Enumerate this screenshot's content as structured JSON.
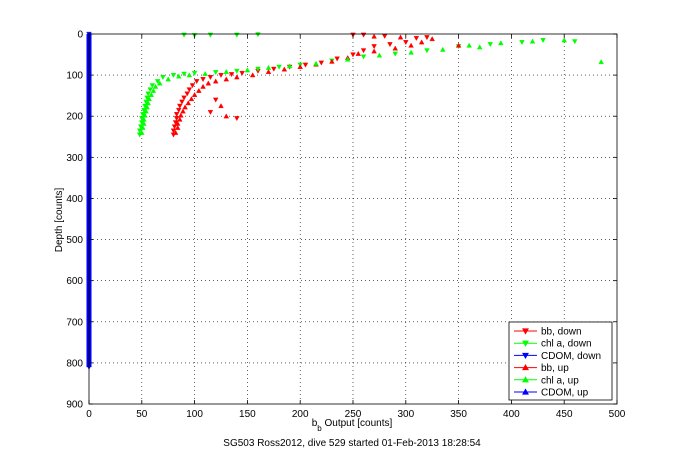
{
  "chart_data": {
    "type": "scatter",
    "xlabel_main": "b",
    "xlabel_sub": "b",
    "xlabel_rest": " Output [counts]",
    "ylabel": "Depth [counts]",
    "caption": "SG503 Ross2012, dive 529 started 01-Feb-2013 18:28:54",
    "xlim": [
      0,
      500
    ],
    "ylim": [
      0,
      900
    ],
    "y_reversed": true,
    "grid": true,
    "legend_position": "bottom-right",
    "xticks": [
      "0",
      "50",
      "100",
      "150",
      "200",
      "250",
      "300",
      "350",
      "400",
      "450",
      "500"
    ],
    "yticks": [
      "0",
      "100",
      "200",
      "300",
      "400",
      "500",
      "600",
      "700",
      "800",
      "900"
    ],
    "colors": {
      "bb": "#ff0000",
      "chla": "#00ff00",
      "cdom": "#0000ff",
      "cdom_line": "#0000ff"
    },
    "series": [
      {
        "name": "bb, down",
        "color": "#ff0000",
        "marker": "triangle-down",
        "points": [
          [
            80,
            245
          ],
          [
            80,
            235
          ],
          [
            81,
            225
          ],
          [
            82,
            215
          ],
          [
            83,
            205
          ],
          [
            83,
            195
          ],
          [
            85,
            185
          ],
          [
            86,
            175
          ],
          [
            88,
            165
          ],
          [
            90,
            155
          ],
          [
            93,
            145
          ],
          [
            95,
            135
          ],
          [
            98,
            125
          ],
          [
            102,
            115
          ],
          [
            108,
            110
          ],
          [
            115,
            105
          ],
          [
            125,
            100
          ],
          [
            135,
            98
          ],
          [
            145,
            95
          ],
          [
            160,
            90
          ],
          [
            175,
            85
          ],
          [
            190,
            80
          ],
          [
            205,
            75
          ],
          [
            220,
            70
          ],
          [
            235,
            60
          ],
          [
            250,
            50
          ],
          [
            260,
            40
          ],
          [
            270,
            30
          ],
          [
            285,
            25
          ],
          [
            300,
            20
          ],
          [
            310,
            10
          ],
          [
            320,
            8
          ],
          [
            280,
            5
          ],
          [
            260,
            2
          ],
          [
            250,
            2
          ],
          [
            120,
            160
          ],
          [
            115,
            190
          ],
          [
            140,
            205
          ]
        ]
      },
      {
        "name": "chl a, down",
        "color": "#00ff00",
        "marker": "triangle-down",
        "points": [
          [
            48,
            245
          ],
          [
            48,
            235
          ],
          [
            49,
            225
          ],
          [
            50,
            215
          ],
          [
            50,
            205
          ],
          [
            51,
            195
          ],
          [
            52,
            185
          ],
          [
            53,
            175
          ],
          [
            54,
            165
          ],
          [
            55,
            155
          ],
          [
            56,
            145
          ],
          [
            58,
            135
          ],
          [
            60,
            125
          ],
          [
            65,
            115
          ],
          [
            70,
            105
          ],
          [
            80,
            100
          ],
          [
            90,
            97
          ],
          [
            100,
            95
          ],
          [
            120,
            93
          ],
          [
            140,
            90
          ],
          [
            160,
            85
          ],
          [
            180,
            80
          ],
          [
            200,
            75
          ],
          [
            230,
            65
          ],
          [
            260,
            55
          ],
          [
            290,
            48
          ],
          [
            320,
            40
          ],
          [
            350,
            30
          ],
          [
            380,
            25
          ],
          [
            410,
            20
          ],
          [
            430,
            15
          ],
          [
            460,
            18
          ],
          [
            90,
            2
          ],
          [
            100,
            3
          ],
          [
            115,
            2
          ],
          [
            140,
            2
          ],
          [
            160,
            1
          ]
        ]
      },
      {
        "name": "CDOM, down",
        "color": "#0000ff",
        "marker": "triangle-down",
        "points": [
          [
            0,
            0
          ],
          [
            0,
            100
          ],
          [
            0,
            200
          ],
          [
            0,
            300
          ],
          [
            0,
            400
          ],
          [
            0,
            500
          ],
          [
            0,
            600
          ],
          [
            0,
            700
          ],
          [
            0,
            800
          ],
          [
            0,
            810
          ]
        ]
      },
      {
        "name": "bb, up",
        "color": "#ff0000",
        "marker": "triangle-up",
        "points": [
          [
            82,
            240
          ],
          [
            84,
            228
          ],
          [
            84,
            218
          ],
          [
            86,
            208
          ],
          [
            87,
            198
          ],
          [
            89,
            188
          ],
          [
            91,
            178
          ],
          [
            94,
            168
          ],
          [
            97,
            158
          ],
          [
            100,
            148
          ],
          [
            104,
            138
          ],
          [
            108,
            128
          ],
          [
            113,
            120
          ],
          [
            120,
            115
          ],
          [
            130,
            110
          ],
          [
            140,
            105
          ],
          [
            155,
            100
          ],
          [
            170,
            92
          ],
          [
            185,
            86
          ],
          [
            200,
            80
          ],
          [
            215,
            74
          ],
          [
            230,
            67
          ],
          [
            245,
            58
          ],
          [
            255,
            48
          ],
          [
            270,
            42
          ],
          [
            290,
            35
          ],
          [
            305,
            28
          ],
          [
            315,
            20
          ],
          [
            325,
            12
          ],
          [
            295,
            8
          ],
          [
            270,
            6
          ],
          [
            350,
            28
          ],
          [
            125,
            175
          ],
          [
            130,
            200
          ]
        ]
      },
      {
        "name": "chl a, up",
        "color": "#00ff00",
        "marker": "triangle-up",
        "points": [
          [
            50,
            240
          ],
          [
            51,
            228
          ],
          [
            52,
            218
          ],
          [
            52,
            208
          ],
          [
            53,
            198
          ],
          [
            54,
            188
          ],
          [
            55,
            178
          ],
          [
            56,
            168
          ],
          [
            57,
            158
          ],
          [
            59,
            148
          ],
          [
            61,
            138
          ],
          [
            63,
            128
          ],
          [
            67,
            120
          ],
          [
            75,
            110
          ],
          [
            85,
            103
          ],
          [
            95,
            100
          ],
          [
            110,
            97
          ],
          [
            130,
            92
          ],
          [
            150,
            88
          ],
          [
            170,
            82
          ],
          [
            190,
            78
          ],
          [
            215,
            72
          ],
          [
            245,
            62
          ],
          [
            275,
            52
          ],
          [
            305,
            45
          ],
          [
            335,
            38
          ],
          [
            360,
            28
          ],
          [
            390,
            22
          ],
          [
            420,
            18
          ],
          [
            450,
            15
          ],
          [
            485,
            68
          ],
          [
            370,
            32
          ]
        ]
      },
      {
        "name": "CDOM, up",
        "color": "#0000ff",
        "marker": "triangle-up",
        "points": [
          [
            0,
            5
          ],
          [
            0,
            150
          ],
          [
            0,
            350
          ],
          [
            0,
            550
          ],
          [
            0,
            750
          ],
          [
            0,
            805
          ]
        ]
      }
    ]
  }
}
